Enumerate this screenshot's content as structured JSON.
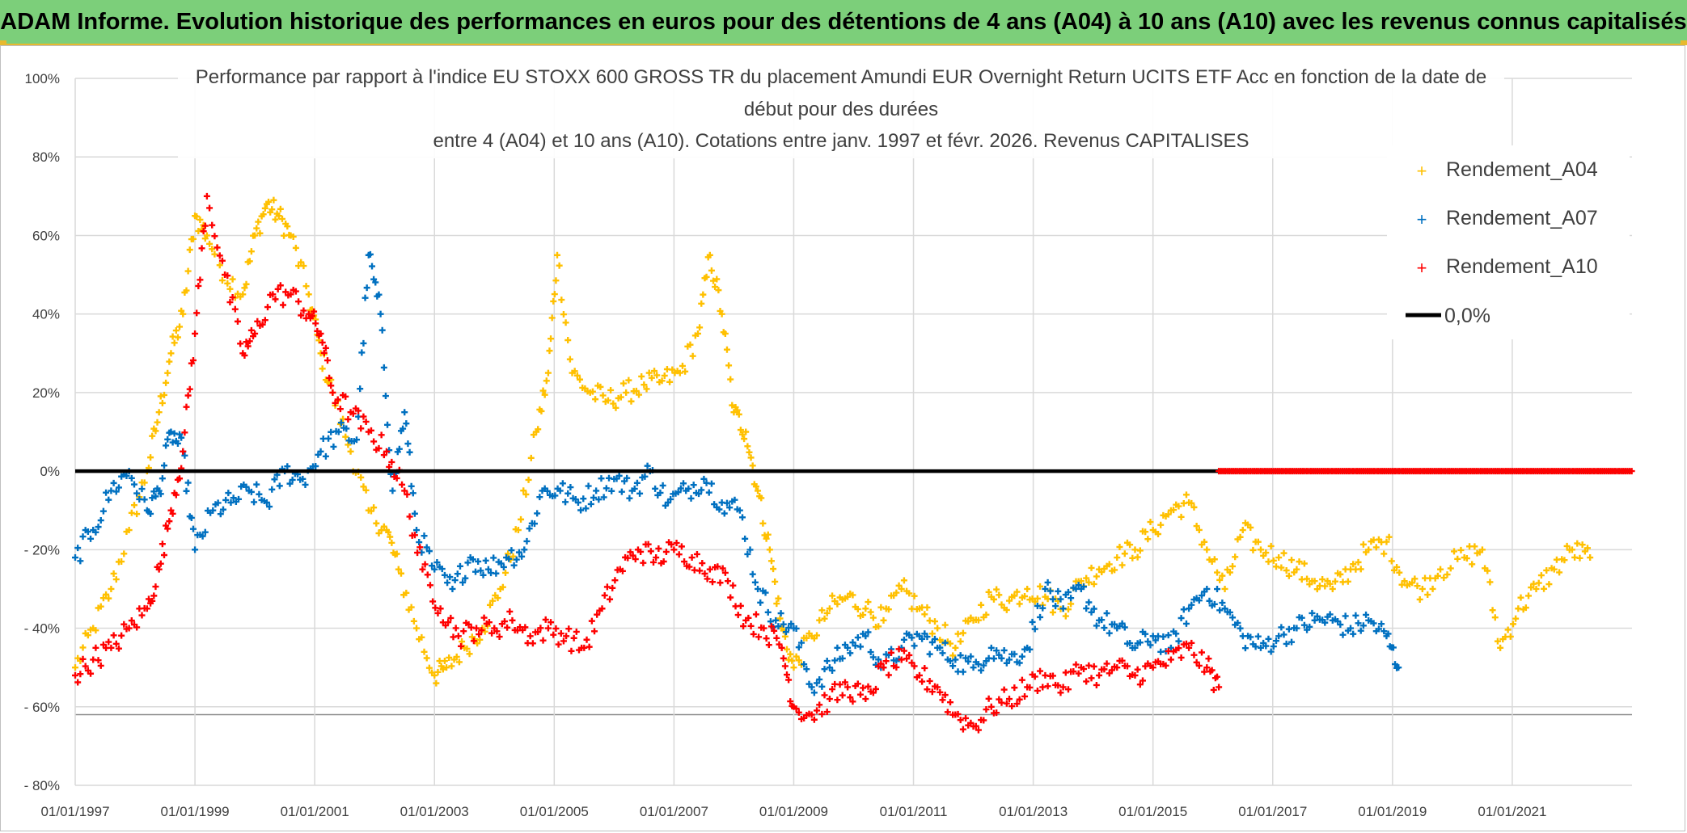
{
  "header": {
    "title": "ADAM Informe. Evolution historique des performances en euros pour des détentions de 4 ans (A04) à 10 ans (A10) avec les revenus connus capitalisés"
  },
  "colors": {
    "banner": "#7ccf7a",
    "banner_border": "#e7b92f",
    "A04": "#ffc000",
    "A07": "#0070c0",
    "A10": "#ff0000",
    "zero_line": "#000000",
    "grid": "#d9d9d9"
  },
  "chart_data": {
    "type": "scatter",
    "title_lines": [
      "Performance  par rapport à l'indice EU STOXX 600 GROSS TR  du placement Amundi EUR Overnight Return UCITS ETF Acc en fonction de la date de",
      "début pour des durées",
      "entre 4 (A04) et 10 ans (A10). Cotations entre janv. 1997 et févr. 2026. Revenus CAPITALISES"
    ],
    "xlabel": "",
    "ylabel": "",
    "xlim": [
      1997.0,
      2023.0
    ],
    "ylim": [
      -80,
      100
    ],
    "y_ticks": [
      100,
      80,
      60,
      40,
      20,
      0,
      -20,
      -40,
      -60,
      -80
    ],
    "y_tick_labels": [
      "100%",
      "80%",
      "60%",
      "40%",
      "20%",
      "0%",
      "- 20%",
      "- 40%",
      "- 60%",
      "- 80%"
    ],
    "x_ticks": [
      1997,
      1999,
      2001,
      2003,
      2005,
      2007,
      2009,
      2011,
      2013,
      2015,
      2017,
      2019,
      2021
    ],
    "x_tick_labels": [
      "01/01/1997",
      "01/01/1999",
      "01/01/2001",
      "01/01/2003",
      "01/01/2005",
      "01/01/2007",
      "01/01/2009",
      "01/01/2011",
      "01/01/2013",
      "01/01/2015",
      "01/01/2017",
      "01/01/2019",
      "01/01/2021"
    ],
    "grid": true,
    "legend_position": "top-right",
    "series": [
      {
        "name": "Rendement_A04",
        "marker": "plus",
        "x": [
          1997.0,
          1997.3,
          1997.6,
          1997.9,
          1998.2,
          1998.4,
          1998.6,
          1998.8,
          1999.0,
          1999.2,
          1999.5,
          1999.8,
          2000.0,
          2000.2,
          2000.4,
          2000.6,
          2000.9,
          2001.1,
          2001.3,
          2001.6,
          2001.9,
          2002.2,
          2002.4,
          2002.7,
          2003.0,
          2003.2,
          2003.5,
          2003.8,
          2004.1,
          2004.4,
          2004.7,
          2004.9,
          2005.05,
          2005.3,
          2005.6,
          2005.9,
          2006.2,
          2006.5,
          2006.8,
          2007.1,
          2007.4,
          2007.6,
          2007.8,
          2008.0,
          2008.2,
          2008.4,
          2008.6,
          2008.8,
          2009.0,
          2009.3,
          2009.6,
          2009.9,
          2010.2,
          2010.5,
          2010.8,
          2011.1,
          2011.4,
          2011.7,
          2012.0,
          2012.3,
          2012.6,
          2012.9,
          2013.2,
          2013.5,
          2013.8,
          2014.1,
          2014.4,
          2014.7,
          2015.0,
          2015.3,
          2015.6,
          2015.9,
          2016.2,
          2016.5,
          2016.8,
          2017.1,
          2017.4,
          2017.7,
          2018.0,
          2018.3,
          2018.6,
          2018.9,
          2019.2,
          2019.5,
          2019.8,
          2020.2,
          2020.5,
          2020.8,
          2021.1,
          2021.4,
          2021.7,
          2022.0,
          2022.3
        ],
        "y": [
          -50,
          -40,
          -30,
          -15,
          0,
          15,
          30,
          40,
          65,
          60,
          50,
          45,
          60,
          68,
          65,
          60,
          45,
          30,
          20,
          5,
          -10,
          -15,
          -25,
          -40,
          -52,
          -50,
          -45,
          -40,
          -30,
          -15,
          10,
          25,
          55,
          25,
          20,
          18,
          20,
          22,
          23,
          25,
          35,
          55,
          40,
          15,
          10,
          -5,
          -20,
          -40,
          -50,
          -42,
          -35,
          -32,
          -35,
          -38,
          -30,
          -35,
          -40,
          -45,
          -38,
          -32,
          -33,
          -30,
          -32,
          -35,
          -28,
          -25,
          -22,
          -20,
          -15,
          -10,
          -8,
          -20,
          -30,
          -15,
          -20,
          -22,
          -25,
          -28,
          -30,
          -25,
          -20,
          -18,
          -28,
          -30,
          -25,
          -22,
          -20,
          -45,
          -35,
          -30,
          -25,
          -20,
          -22
        ]
      },
      {
        "name": "Rendement_A07",
        "marker": "plus",
        "x": [
          1997.0,
          1997.3,
          1997.6,
          1997.9,
          1998.2,
          1998.4,
          1998.6,
          1998.8,
          1999.0,
          1999.3,
          1999.6,
          1999.9,
          2000.2,
          2000.5,
          2000.8,
          2001.1,
          2001.4,
          2001.7,
          2001.9,
          2002.1,
          2002.3,
          2002.5,
          2002.7,
          2003.0,
          2003.3,
          2003.6,
          2003.9,
          2004.2,
          2004.5,
          2004.8,
          2005.1,
          2005.4,
          2005.7,
          2006.0,
          2006.3,
          2006.6,
          2006.9,
          2007.2,
          2007.5,
          2007.8,
          2008.1,
          2008.4,
          2008.7,
          2009.0,
          2009.3,
          2009.6,
          2009.9,
          2010.2,
          2010.5,
          2010.8,
          2011.1,
          2011.4,
          2011.7,
          2012.0,
          2012.3,
          2012.6,
          2012.9,
          2013.2,
          2013.5,
          2013.8,
          2014.1,
          2014.4,
          2014.7,
          2015.0,
          2015.3,
          2015.6,
          2015.9,
          2016.2,
          2016.5,
          2016.8,
          2017.1,
          2017.4,
          2017.7,
          2018.0,
          2018.3,
          2018.6,
          2018.9,
          2019.1
        ],
        "y": [
          -22,
          -15,
          -5,
          0,
          -10,
          -5,
          10,
          5,
          -20,
          -10,
          -8,
          -5,
          -8,
          0,
          -2,
          5,
          10,
          8,
          55,
          40,
          -5,
          15,
          -15,
          -25,
          -30,
          -22,
          -25,
          -22,
          -20,
          -5,
          -5,
          -8,
          -5,
          -2,
          -5,
          0,
          -8,
          -5,
          -2,
          -8,
          -10,
          -30,
          -38,
          -40,
          -55,
          -50,
          -45,
          -42,
          -50,
          -45,
          -42,
          -45,
          -48,
          -50,
          -45,
          -48,
          -45,
          -30,
          -35,
          -30,
          -38,
          -40,
          -45,
          -42,
          -45,
          -35,
          -30,
          -35,
          -42,
          -45,
          -42,
          -40,
          -38,
          -38,
          -40,
          -38,
          -42,
          -50
        ]
      },
      {
        "name": "Rendement_A10",
        "marker": "plus",
        "x": [
          1997.0,
          1997.3,
          1997.6,
          1997.9,
          1998.2,
          1998.4,
          1998.6,
          1998.8,
          1999.0,
          1999.2,
          1999.5,
          1999.8,
          2000.0,
          2000.3,
          2000.6,
          2000.9,
          2001.1,
          2001.3,
          2001.6,
          2001.9,
          2002.2,
          2002.5,
          2002.8,
          2003.1,
          2003.4,
          2003.7,
          2004.0,
          2004.3,
          2004.6,
          2004.9,
          2005.2,
          2005.5,
          2005.8,
          2006.1,
          2006.4,
          2006.7,
          2007.0,
          2007.3,
          2007.6,
          2007.9,
          2008.2,
          2008.5,
          2008.8,
          2009.0,
          2009.3,
          2009.6,
          2009.9,
          2010.2,
          2010.5,
          2010.8,
          2011.1,
          2011.4,
          2011.7,
          2012.0,
          2012.3,
          2012.6,
          2012.9,
          2013.2,
          2013.5,
          2013.8,
          2014.1,
          2014.4,
          2014.7,
          2015.0,
          2015.3,
          2015.6,
          2015.9,
          2016.1
        ],
        "y": [
          -52,
          -48,
          -45,
          -40,
          -35,
          -25,
          -10,
          5,
          35,
          70,
          50,
          30,
          35,
          45,
          45,
          40,
          35,
          20,
          15,
          10,
          5,
          -5,
          -25,
          -35,
          -42,
          -40,
          -40,
          -38,
          -42,
          -40,
          -42,
          -45,
          -35,
          -25,
          -20,
          -22,
          -20,
          -22,
          -25,
          -28,
          -38,
          -40,
          -45,
          -60,
          -62,
          -58,
          -55,
          -58,
          -50,
          -48,
          -52,
          -55,
          -62,
          -65,
          -60,
          -58,
          -55,
          -52,
          -55,
          -50,
          -52,
          -50,
          -52,
          -50,
          -48,
          -45,
          -50,
          -55
        ]
      },
      {
        "name": "0,0%",
        "marker": "line",
        "x": [
          1997.0,
          2023.0
        ],
        "y": [
          0,
          0
        ]
      }
    ],
    "flat_zero_points": {
      "series": "Rendement_A10",
      "x_start": 2016.1,
      "x_end": 2023.0,
      "y": 0
    }
  }
}
